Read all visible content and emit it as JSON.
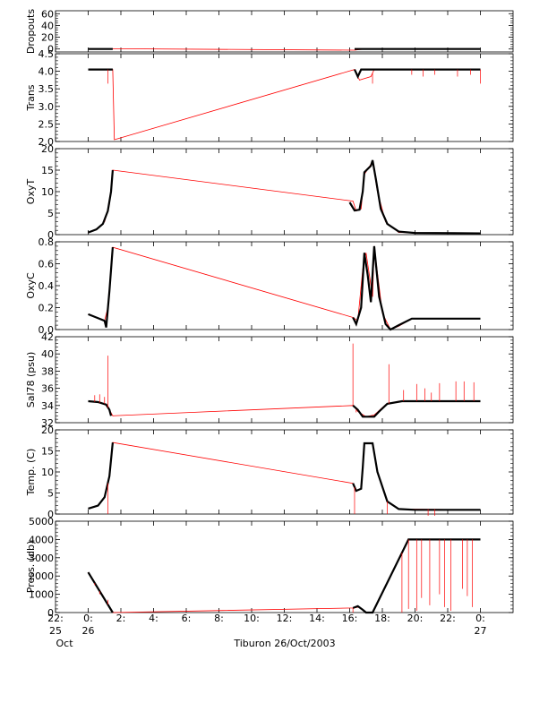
{
  "chart_data": {
    "type": "line",
    "xlabel": "Tiburon 26/Oct/2003",
    "x_range_hours": [
      -2,
      26
    ],
    "x_ticks": [
      {
        "t": -2,
        "top": "22:",
        "bottom": "25",
        "extra": "Oct"
      },
      {
        "t": 0,
        "top": "0:",
        "bottom": "26"
      },
      {
        "t": 2,
        "top": "2:"
      },
      {
        "t": 4,
        "top": "4:"
      },
      {
        "t": 6,
        "top": "6:"
      },
      {
        "t": 8,
        "top": "8:"
      },
      {
        "t": 10,
        "top": "10:"
      },
      {
        "t": 12,
        "top": "12:"
      },
      {
        "t": 14,
        "top": "14:"
      },
      {
        "t": 16,
        "top": "16:"
      },
      {
        "t": 18,
        "top": "18:"
      },
      {
        "t": 20,
        "top": "20:"
      },
      {
        "t": 22,
        "top": "22:"
      },
      {
        "t": 24,
        "top": "0:",
        "bottom": "27"
      }
    ],
    "colors": {
      "raw": "#ff0000",
      "clean": "#000000",
      "frame": "#000000",
      "minor": "#999999"
    },
    "panels": [
      {
        "ylabel": "Dropouts",
        "ylim": [
          -5,
          65
        ],
        "yticks": [
          "0",
          "20",
          "40",
          "60"
        ],
        "ytick_values": [
          0,
          20,
          40,
          60
        ],
        "raw": [
          [
            0,
            0
          ],
          [
            1.5,
            0.5
          ],
          [
            16.3,
            -2
          ],
          [
            16.6,
            -1
          ],
          [
            17.2,
            0.5
          ],
          [
            24,
            0
          ]
        ],
        "clean": [
          [
            0,
            0
          ],
          [
            1.5,
            0
          ],
          [
            16.3,
            0
          ],
          [
            17.1,
            0
          ],
          [
            24,
            0
          ]
        ],
        "clean_segments": [
          [
            0,
            1.5
          ],
          [
            16.3,
            24
          ]
        ]
      },
      {
        "ylabel": "Trans",
        "ylim": [
          2.0,
          4.5
        ],
        "yticks": [
          "2.0",
          "2.5",
          "3.0",
          "3.5",
          "4.0",
          "4.5"
        ],
        "ytick_values": [
          2.0,
          2.5,
          3.0,
          3.5,
          4.0,
          4.5
        ],
        "raw": [
          [
            0,
            4.05
          ],
          [
            1.5,
            4.05
          ],
          [
            1.6,
            2.05
          ],
          [
            16.3,
            4.05
          ],
          [
            16.6,
            3.75
          ],
          [
            17.3,
            3.85
          ],
          [
            17.5,
            4.05
          ],
          [
            24,
            4.05
          ]
        ],
        "clean": [
          [
            0,
            4.05
          ],
          [
            1.5,
            4.05
          ],
          [
            16.3,
            4.05
          ],
          [
            16.5,
            3.85
          ],
          [
            16.7,
            4.05
          ],
          [
            17.6,
            4.05
          ],
          [
            24,
            4.05
          ]
        ],
        "clean_segments": [
          [
            0,
            1.5
          ],
          [
            16.3,
            24
          ]
        ]
      },
      {
        "ylabel": "OxyT",
        "ylim": [
          0,
          20
        ],
        "yticks": [
          "0",
          "5",
          "10",
          "15",
          "20"
        ],
        "ytick_values": [
          0,
          5,
          10,
          15,
          20
        ],
        "raw": [
          [
            0,
            0.5
          ],
          [
            0.5,
            1.2
          ],
          [
            1.0,
            3.0
          ],
          [
            1.3,
            7.0
          ],
          [
            1.5,
            15.0
          ],
          [
            16.2,
            7.8
          ],
          [
            16.4,
            5.5
          ],
          [
            16.7,
            6.0
          ],
          [
            16.9,
            14.0
          ],
          [
            17.4,
            17.0
          ],
          [
            17.7,
            10.0
          ],
          [
            18.2,
            3.0
          ],
          [
            19.0,
            0.5
          ],
          [
            24,
            0.3
          ]
        ],
        "clean": [
          [
            0,
            0.5
          ],
          [
            0.5,
            1.2
          ],
          [
            0.9,
            2.5
          ],
          [
            1.2,
            5.5
          ],
          [
            1.4,
            10.0
          ],
          [
            1.5,
            15.0
          ]
        ],
        "clean2": [
          [
            16.0,
            7.5
          ],
          [
            16.3,
            5.6
          ],
          [
            16.6,
            5.8
          ],
          [
            16.8,
            10.0
          ],
          [
            16.9,
            14.5
          ],
          [
            17.3,
            16.0
          ],
          [
            17.4,
            17.3
          ],
          [
            17.6,
            13.0
          ],
          [
            17.9,
            6.0
          ],
          [
            18.3,
            2.5
          ],
          [
            19.0,
            0.7
          ],
          [
            20,
            0.4
          ],
          [
            24,
            0.3
          ]
        ]
      },
      {
        "ylabel": "OxyC",
        "ylim": [
          0,
          0.8
        ],
        "yticks": [
          "0.0",
          "0.2",
          "0.4",
          "0.6",
          "0.8"
        ],
        "ytick_values": [
          0,
          0.2,
          0.4,
          0.6,
          0.8
        ],
        "raw": [
          [
            0,
            0.14
          ],
          [
            0.5,
            0.11
          ],
          [
            1.0,
            0.08
          ],
          [
            1.2,
            0.2
          ],
          [
            1.5,
            0.75
          ],
          [
            16.2,
            0.11
          ],
          [
            16.5,
            0.08
          ],
          [
            16.8,
            0.55
          ],
          [
            17.0,
            0.7
          ],
          [
            17.4,
            0.3
          ],
          [
            17.5,
            0.76
          ],
          [
            18.0,
            0.15
          ],
          [
            18.5,
            0.0
          ],
          [
            19.0,
            0.03
          ],
          [
            19.8,
            0.1
          ],
          [
            24,
            0.1
          ]
        ],
        "clean": [
          [
            0,
            0.14
          ],
          [
            0.5,
            0.11
          ],
          [
            1.0,
            0.08
          ],
          [
            1.1,
            0.02
          ],
          [
            1.3,
            0.35
          ],
          [
            1.5,
            0.75
          ]
        ],
        "clean2": [
          [
            16.2,
            0.11
          ],
          [
            16.4,
            0.05
          ],
          [
            16.7,
            0.2
          ],
          [
            16.9,
            0.7
          ],
          [
            17.1,
            0.5
          ],
          [
            17.3,
            0.25
          ],
          [
            17.5,
            0.76
          ],
          [
            17.8,
            0.3
          ],
          [
            18.2,
            0.05
          ],
          [
            18.5,
            0.0
          ],
          [
            19.0,
            0.04
          ],
          [
            19.8,
            0.1
          ],
          [
            24,
            0.1
          ]
        ]
      },
      {
        "ylabel": "Sal78 (psu)",
        "ylim": [
          32,
          42
        ],
        "yticks": [
          "32",
          "34",
          "36",
          "38",
          "40",
          "42"
        ],
        "ytick_values": [
          32,
          34,
          36,
          38,
          40,
          42
        ],
        "raw": [
          [
            0,
            34.5
          ],
          [
            0.5,
            34.4
          ],
          [
            1.0,
            34.2
          ],
          [
            1.3,
            33.5
          ],
          [
            1.5,
            32.8
          ],
          [
            16.2,
            34.0
          ],
          [
            16.5,
            33.3
          ],
          [
            17.0,
            32.7
          ],
          [
            17.5,
            32.9
          ],
          [
            18.2,
            34.1
          ],
          [
            19,
            34.5
          ],
          [
            24,
            34.5
          ]
        ],
        "clean": [
          [
            0,
            34.5
          ],
          [
            0.6,
            34.4
          ],
          [
            1.1,
            34.1
          ],
          [
            1.3,
            33.5
          ],
          [
            1.4,
            32.8
          ]
        ],
        "clean2": [
          [
            16.2,
            34.0
          ],
          [
            16.5,
            33.5
          ],
          [
            16.8,
            32.7
          ],
          [
            17.5,
            32.7
          ],
          [
            17.8,
            33.3
          ],
          [
            18.3,
            34.2
          ],
          [
            19.2,
            34.5
          ],
          [
            24,
            34.5
          ]
        ]
      },
      {
        "ylabel": "Temp. (C)",
        "ylim": [
          0,
          20
        ],
        "yticks": [
          "0",
          "5",
          "10",
          "15",
          "20"
        ],
        "ytick_values": [
          0,
          5,
          10,
          15,
          20
        ],
        "raw": [
          [
            0,
            1.3
          ],
          [
            0.6,
            2.0
          ],
          [
            1.0,
            4.0
          ],
          [
            1.3,
            9.0
          ],
          [
            1.5,
            17.0
          ],
          [
            16.2,
            7.3
          ],
          [
            16.4,
            5.5
          ],
          [
            16.7,
            6.0
          ],
          [
            16.9,
            16.8
          ],
          [
            17.4,
            16.8
          ],
          [
            17.7,
            10.0
          ],
          [
            18.3,
            3.0
          ],
          [
            19.0,
            1.2
          ],
          [
            24,
            1.0
          ]
        ],
        "clean": [
          [
            0,
            1.3
          ],
          [
            0.6,
            2.0
          ],
          [
            1.0,
            4.0
          ],
          [
            1.3,
            9.0
          ],
          [
            1.5,
            17.0
          ]
        ],
        "clean2": [
          [
            16.2,
            7.3
          ],
          [
            16.4,
            5.5
          ],
          [
            16.7,
            6.0
          ],
          [
            16.8,
            11.0
          ],
          [
            16.9,
            16.8
          ],
          [
            17.4,
            16.8
          ],
          [
            17.7,
            10.0
          ],
          [
            18.3,
            3.0
          ],
          [
            19.0,
            1.2
          ],
          [
            20,
            1.0
          ],
          [
            24,
            1.0
          ]
        ]
      },
      {
        "ylabel": "Press. (db)",
        "ylim": [
          0,
          5000
        ],
        "yticks": [
          "0",
          "1000",
          "2000",
          "3000",
          "4000",
          "5000"
        ],
        "ytick_values": [
          0,
          1000,
          2000,
          3000,
          4000,
          5000
        ],
        "raw": [
          [
            0,
            2200
          ],
          [
            1.5,
            0
          ],
          [
            16.2,
            250
          ],
          [
            16.6,
            300
          ],
          [
            17.0,
            0
          ],
          [
            17.4,
            0
          ],
          [
            19.6,
            4000
          ],
          [
            24,
            4000
          ]
        ],
        "clean": [
          [
            0,
            2200
          ],
          [
            1.5,
            0
          ]
        ],
        "clean2": [
          [
            16.2,
            250
          ],
          [
            16.5,
            350
          ],
          [
            16.8,
            150
          ],
          [
            17.0,
            0
          ],
          [
            17.4,
            0
          ],
          [
            19.6,
            4000
          ],
          [
            24,
            4000
          ]
        ]
      }
    ],
    "spikes": [
      {
        "panel": 1,
        "x": [
          1.2,
          16.6,
          17.4,
          19.8,
          20.5,
          21.2,
          22.6,
          23.4,
          24.0
        ],
        "to": [
          3.65,
          3.75,
          3.65,
          3.9,
          3.85,
          3.9,
          3.85,
          3.9,
          3.65
        ]
      },
      {
        "panel": 4,
        "x": [
          0.4,
          0.7,
          1.0,
          1.2,
          16.2,
          16.4,
          18.4,
          19.3,
          20.1,
          20.6,
          21.0,
          21.5,
          22.5,
          23.0,
          23.6
        ],
        "to": [
          35.2,
          35.3,
          35.0,
          39.8,
          41.2,
          33.2,
          38.8,
          35.8,
          36.5,
          36.0,
          35.5,
          36.6,
          36.8,
          36.8,
          36.7
        ]
      },
      {
        "panel": 5,
        "x": [
          1.2,
          16.3,
          18.3,
          20.8,
          21.2
        ],
        "to": [
          0,
          0,
          0,
          -1,
          -1
        ]
      },
      {
        "panel": 6,
        "x": [
          0.4,
          0.7,
          1.2,
          16.2,
          17.3,
          19.2,
          19.6,
          20.1,
          20.4,
          20.9,
          21.5,
          21.8,
          22.2,
          22.9,
          23.2,
          23.5
        ],
        "to": [
          1500,
          1000,
          700,
          0,
          0,
          0,
          200,
          100,
          800,
          400,
          1000,
          300,
          100,
          1300,
          900,
          300
        ]
      }
    ]
  }
}
